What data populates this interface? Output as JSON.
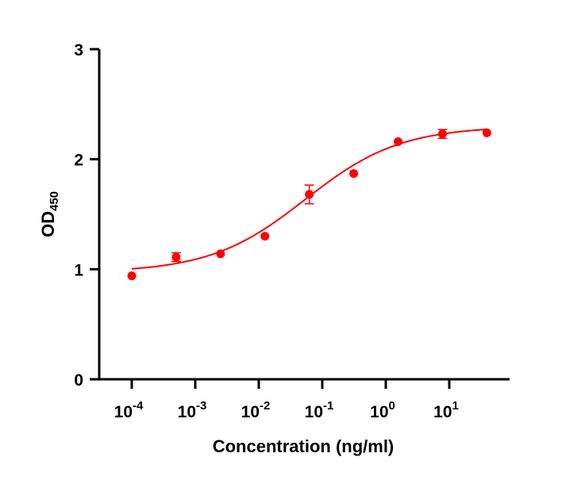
{
  "chart_data": {
    "type": "scatter",
    "title": "",
    "xlabel": "Concentration (ng/ml)",
    "ylabel": "OD",
    "ylabel_subscript": "450",
    "xscale": "log",
    "xlim": [
      5e-05,
      100
    ],
    "ylim": [
      0,
      3
    ],
    "x_ticks": [
      {
        "base": "10",
        "exp": "-4",
        "value": 0.0001
      },
      {
        "base": "10",
        "exp": "-3",
        "value": 0.001
      },
      {
        "base": "10",
        "exp": "-2",
        "value": 0.01
      },
      {
        "base": "10",
        "exp": "-1",
        "value": 0.1
      },
      {
        "base": "10",
        "exp": "0",
        "value": 1
      },
      {
        "base": "10",
        "exp": "1",
        "value": 10
      }
    ],
    "y_ticks": [
      "0",
      "1",
      "2",
      "3"
    ],
    "grid": false,
    "color": "#ff0000",
    "series": [
      {
        "name": "OD450",
        "x": [
          0.0001,
          0.0005,
          0.0025,
          0.0125,
          0.0625,
          0.3125,
          1.5625,
          7.8125,
          39.0625
        ],
        "y": [
          0.94,
          1.11,
          1.14,
          1.3,
          1.68,
          1.87,
          2.16,
          2.23,
          2.24
        ],
        "error": [
          0.01,
          0.04,
          0.01,
          0.01,
          0.085,
          0.01,
          0.01,
          0.04,
          0.01
        ]
      }
    ],
    "fit": {
      "model": "4PL",
      "bottom": 0.97,
      "top": 2.3,
      "ec50": 0.054,
      "hill": 0.58
    }
  }
}
